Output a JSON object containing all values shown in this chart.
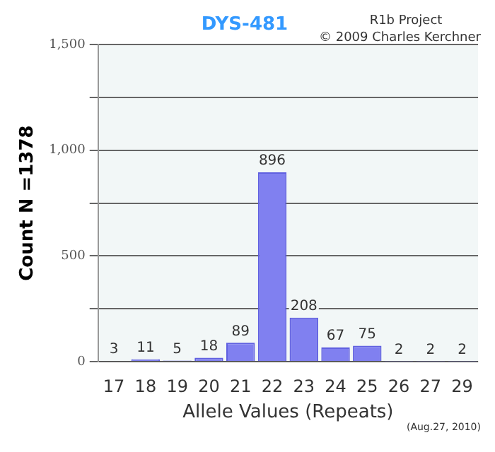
{
  "chart_data": {
    "type": "bar",
    "title": "DYS-481",
    "xlabel": "Allele Values (Repeats)",
    "ylabel": "Count N =1378",
    "categories": [
      "17",
      "18",
      "19",
      "20",
      "21",
      "22",
      "23",
      "24",
      "25",
      "26",
      "27",
      "29"
    ],
    "values": [
      3,
      11,
      5,
      18,
      89,
      896,
      208,
      67,
      75,
      2,
      2,
      2
    ],
    "color": "#8080f0",
    "ylim": [
      0,
      1500
    ],
    "yticks": [
      0,
      {
        "value": 250,
        "label": null
      },
      500,
      {
        "value": 750,
        "label": null
      },
      {
        "value": 1000,
        "label": "1,000"
      },
      {
        "value": 1250,
        "label": null
      },
      {
        "value": 1500,
        "label": "1,500"
      }
    ],
    "grid": "y",
    "legend": false,
    "data_labels": true,
    "annotations": [
      "R1b Project",
      "© 2009 Charles Kerchner",
      "(Aug.27, 2010)"
    ]
  }
}
